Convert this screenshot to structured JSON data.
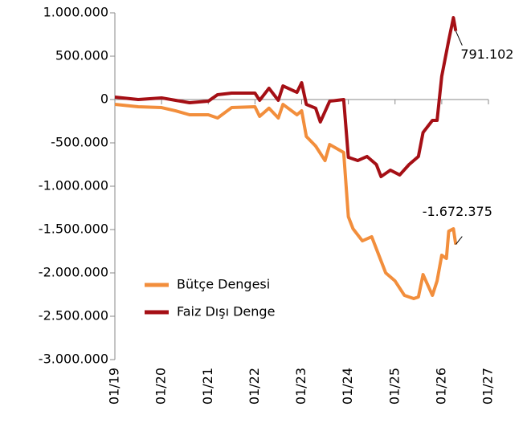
{
  "chart_data": {
    "type": "line",
    "xlim": [
      2019,
      2027
    ],
    "xticks": [
      {
        "value": 2019,
        "label": "01/19"
      },
      {
        "value": 2020,
        "label": "01/20"
      },
      {
        "value": 2021,
        "label": "01/21"
      },
      {
        "value": 2022,
        "label": "01/22"
      },
      {
        "value": 2023,
        "label": "01/23"
      },
      {
        "value": 2024,
        "label": "01/24"
      },
      {
        "value": 2025,
        "label": "01/25"
      },
      {
        "value": 2026,
        "label": "01/26"
      },
      {
        "value": 2027,
        "label": "01/27"
      }
    ],
    "ylim": [
      -3000000,
      1000000
    ],
    "yticks": [
      {
        "value": -3000000,
        "label": "-3.000.000"
      },
      {
        "value": -2500000,
        "label": "-2.500.000"
      },
      {
        "value": -2000000,
        "label": "-2.000.000"
      },
      {
        "value": -1500000,
        "label": "-1.500.000"
      },
      {
        "value": -1000000,
        "label": "-1.000.000"
      },
      {
        "value": -500000,
        "label": "-500.000"
      },
      0,
      {
        "value": 500000,
        "label": "500.000"
      },
      {
        "value": 1000000,
        "label": "1.000.000"
      }
    ],
    "legend": "lower left",
    "series": [
      {
        "name": "Bütçe Dengesi",
        "color": "#f28e3c",
        "x": [
          2019.0,
          2019.5,
          2020.0,
          2020.3,
          2020.6,
          2021.0,
          2021.2,
          2021.5,
          2022.0,
          2022.1,
          2022.3,
          2022.5,
          2022.6,
          2022.9,
          2023.0,
          2023.1,
          2023.3,
          2023.5,
          2023.6,
          2023.9,
          2024.0,
          2024.1,
          2024.3,
          2024.5,
          2024.6,
          2024.8,
          2025.0,
          2025.2,
          2025.4,
          2025.5,
          2025.6,
          2025.8,
          2025.9,
          2026.0,
          2026.1,
          2026.15,
          2026.25,
          2026.3
        ],
        "values": [
          -56000,
          -83000,
          -93000,
          -130000,
          -176000,
          -176000,
          -213000,
          -93000,
          -83000,
          -194000,
          -100000,
          -213000,
          -56000,
          -176000,
          -130000,
          -426000,
          -537000,
          -704000,
          -519000,
          -611000,
          -1352000,
          -1491000,
          -1630000,
          -1583000,
          -1722000,
          -2000000,
          -2093000,
          -2259000,
          -2296000,
          -2278000,
          -2019000,
          -2259000,
          -2093000,
          -1796000,
          -1833000,
          -1519000,
          -1491000,
          -1672375
        ],
        "value_labels": [
          null,
          null,
          null,
          null,
          null,
          null,
          null,
          null,
          null,
          null,
          null,
          null,
          null,
          null,
          null,
          null,
          null,
          null,
          null,
          null,
          null,
          null,
          null,
          null,
          null,
          null,
          null,
          null,
          null,
          null,
          null,
          null,
          null,
          null,
          null,
          null,
          null,
          "-1.672.375"
        ]
      },
      {
        "name": "Faiz Dışı Denge",
        "color": "#a50f15",
        "x": [
          2019.0,
          2019.5,
          2020.0,
          2020.3,
          2020.6,
          2021.0,
          2021.2,
          2021.5,
          2022.0,
          2022.1,
          2022.3,
          2022.5,
          2022.6,
          2022.9,
          2023.0,
          2023.1,
          2023.3,
          2023.4,
          2023.6,
          2023.9,
          2024.0,
          2024.2,
          2024.4,
          2024.6,
          2024.7,
          2024.9,
          2025.1,
          2025.3,
          2025.5,
          2025.6,
          2025.8,
          2025.9,
          2026.0,
          2026.15,
          2026.25,
          2026.3
        ],
        "values": [
          28000,
          0,
          19000,
          -9000,
          -37000,
          -19000,
          56000,
          74000,
          74000,
          -9000,
          130000,
          -9000,
          157000,
          83000,
          194000,
          -56000,
          -100000,
          -259000,
          -19000,
          0,
          -667000,
          -704000,
          -657000,
          -750000,
          -889000,
          -815000,
          -870000,
          -750000,
          -657000,
          -380000,
          -241000,
          -241000,
          269000,
          685000,
          944000,
          791102
        ],
        "value_labels": [
          null,
          null,
          null,
          null,
          null,
          null,
          null,
          null,
          null,
          null,
          null,
          null,
          null,
          null,
          null,
          null,
          null,
          null,
          null,
          null,
          null,
          null,
          null,
          null,
          null,
          null,
          null,
          null,
          null,
          null,
          null,
          null,
          null,
          null,
          null,
          "791.102"
        ]
      }
    ]
  }
}
